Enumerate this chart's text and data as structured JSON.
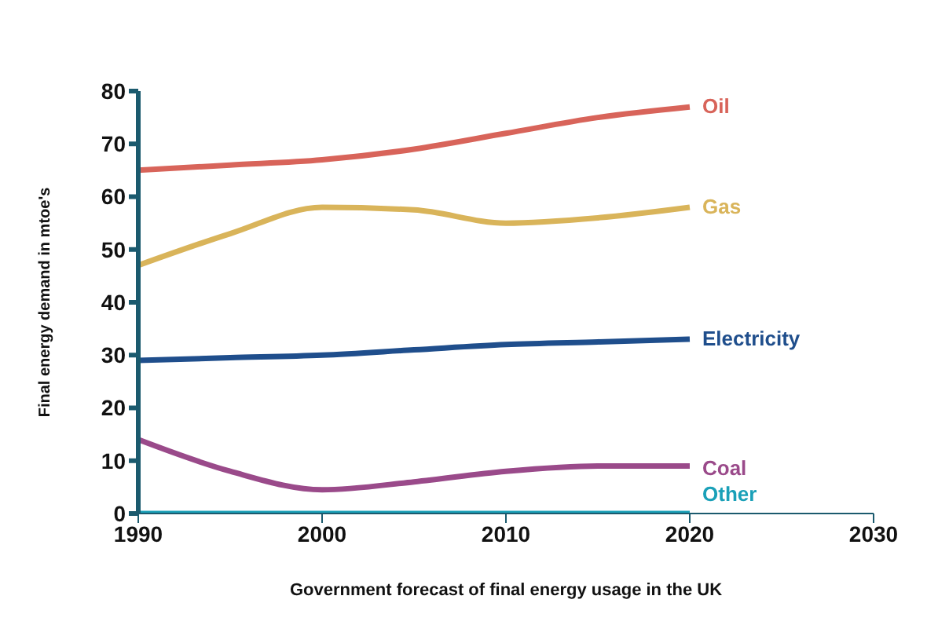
{
  "chart_data": {
    "type": "line",
    "xlabel": "Government forecast of final energy usage in the UK",
    "ylabel": "Final energy demand in mtoe's",
    "x": [
      1990,
      1995,
      2000,
      2005,
      2010,
      2015,
      2020
    ],
    "series": [
      {
        "name": "Oil",
        "color": "#d8645a",
        "values": [
          65,
          66,
          67,
          69,
          72,
          75,
          77
        ]
      },
      {
        "name": "Gas",
        "color": "#d9b45a",
        "values": [
          47,
          53,
          58,
          57.5,
          55,
          56,
          58
        ]
      },
      {
        "name": "Electricity",
        "color": "#1f4e8c",
        "values": [
          29,
          29.5,
          30,
          31,
          32,
          32.5,
          33
        ]
      },
      {
        "name": "Coal",
        "color": "#9a4a8a",
        "values": [
          14,
          8,
          4.5,
          6,
          8,
          9,
          9
        ]
      },
      {
        "name": "Other",
        "color": "#1aa0b8",
        "values": [
          0,
          0,
          0,
          0,
          0,
          0,
          0
        ]
      }
    ],
    "xlim": [
      1990,
      2030
    ],
    "xticks": [
      1990,
      2000,
      2010,
      2020,
      2030
    ],
    "ylim": [
      0,
      80
    ],
    "yticks": [
      0,
      10,
      20,
      30,
      40,
      50,
      60,
      70,
      80
    ],
    "marker": "none",
    "line_style": "solid"
  }
}
